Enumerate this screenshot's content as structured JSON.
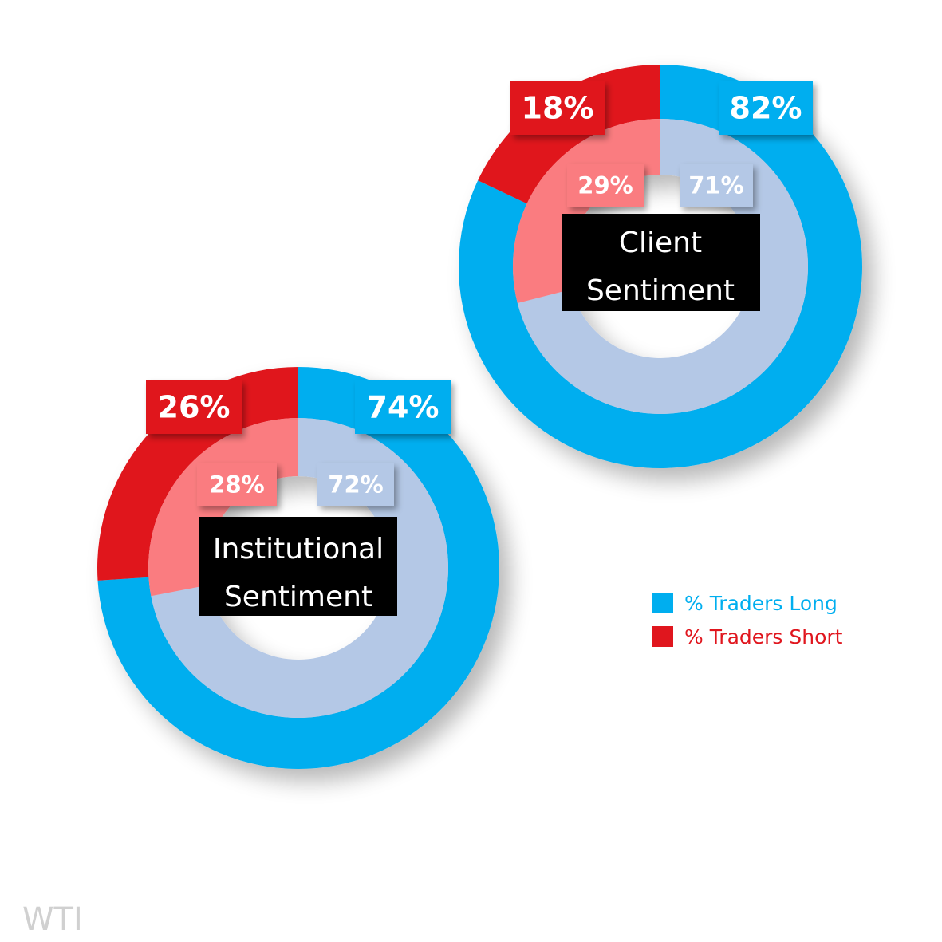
{
  "colors": {
    "long_outer": "#00AEEF",
    "short_outer": "#E0161E",
    "long_inner": "#B4C8E6",
    "short_inner": "#FA7B80",
    "center_box": "#000000"
  },
  "legend": {
    "long_label": "% Traders Long",
    "short_label": "% Traders Short",
    "long_color": "#00AEEF",
    "short_color": "#E0161E"
  },
  "watermark": "WTI",
  "chart_data": [
    {
      "type": "pie",
      "title": "Client Sentiment",
      "title_lines": [
        "Client",
        "Sentiment"
      ],
      "outer": {
        "categories": [
          "% Traders Long",
          "% Traders Short"
        ],
        "values": [
          82,
          18
        ],
        "labels": [
          "82%",
          "18%"
        ]
      },
      "inner": {
        "categories": [
          "% Traders Long",
          "% Traders Short"
        ],
        "values": [
          71,
          29
        ],
        "labels": [
          "71%",
          "29%"
        ]
      }
    },
    {
      "type": "pie",
      "title": "Institutional Sentiment",
      "title_lines": [
        "Institutional",
        "Sentiment"
      ],
      "outer": {
        "categories": [
          "% Traders Long",
          "% Traders Short"
        ],
        "values": [
          74,
          26
        ],
        "labels": [
          "74%",
          "26%"
        ]
      },
      "inner": {
        "categories": [
          "% Traders Long",
          "% Traders Short"
        ],
        "values": [
          72,
          28
        ],
        "labels": [
          "72%",
          "28%"
        ]
      }
    }
  ]
}
